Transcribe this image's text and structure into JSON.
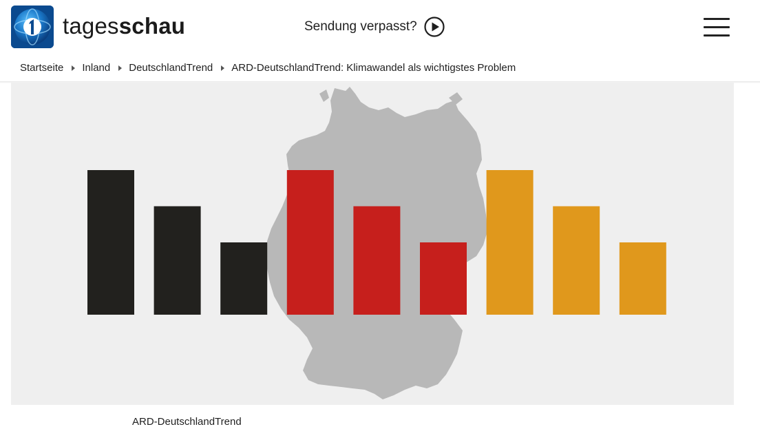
{
  "header": {
    "logo_text_light": "tages",
    "logo_text_bold": "schau",
    "missed_label": "Sendung verpasst?"
  },
  "breadcrumb": [
    "Startseite",
    "Inland",
    "DeutschlandTrend",
    "ARD-DeutschlandTrend: Klimawandel als wichtigstes Problem"
  ],
  "image": {
    "bars": [
      {
        "color": "#22211e",
        "level": 1.0
      },
      {
        "color": "#22211e",
        "level": 0.75
      },
      {
        "color": "#22211e",
        "level": 0.5
      },
      {
        "color": "#c61f1c",
        "level": 1.0
      },
      {
        "color": "#c61f1c",
        "level": 0.75
      },
      {
        "color": "#c61f1c",
        "level": 0.5
      },
      {
        "color": "#e0981c",
        "level": 1.0
      },
      {
        "color": "#e0981c",
        "level": 0.75
      },
      {
        "color": "#e0981c",
        "level": 0.5
      }
    ],
    "map_color": "#b8b8b8",
    "background_color": "#efefef"
  },
  "caption": "ARD-DeutschlandTrend"
}
